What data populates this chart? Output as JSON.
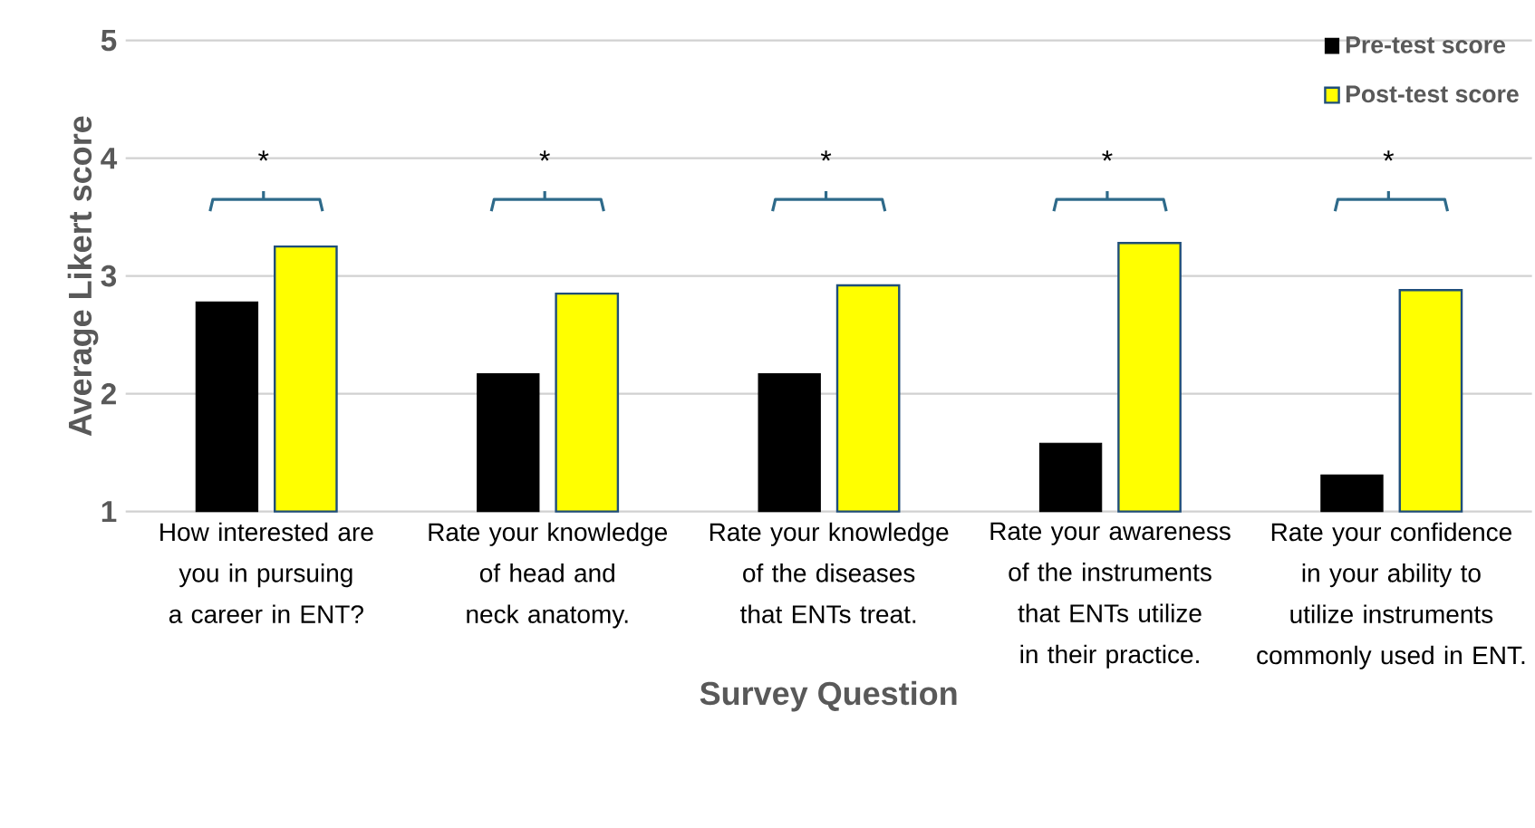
{
  "chart_data": {
    "type": "bar",
    "xlabel": "Survey Question",
    "ylabel": "Average Likert score",
    "categories": [
      "How interested are you in pursuing a career in ENT?",
      "Rate your knowledge of head and neck anatomy.",
      "Rate your knowledge of the diseases that ENTs treat.",
      "Rate your awareness of the instruments that ENTs utilize in their practice.",
      "Rate your confidence in your ability to utilize instruments commonly used in ENT."
    ],
    "series": [
      {
        "name": "Pre-test score",
        "color": "#000000",
        "values": [
          2.78,
          2.17,
          2.17,
          1.58,
          1.31
        ]
      },
      {
        "name": "Post-test score",
        "color": "#ffff00",
        "values": [
          3.25,
          2.85,
          2.92,
          3.28,
          2.88
        ]
      }
    ],
    "ylim": [
      1,
      5
    ],
    "yticks": [
      1,
      2,
      3,
      4,
      5
    ],
    "grid": "y",
    "legend": "top right",
    "annotations": [
      "*",
      "*",
      "*",
      "*",
      "*"
    ]
  }
}
